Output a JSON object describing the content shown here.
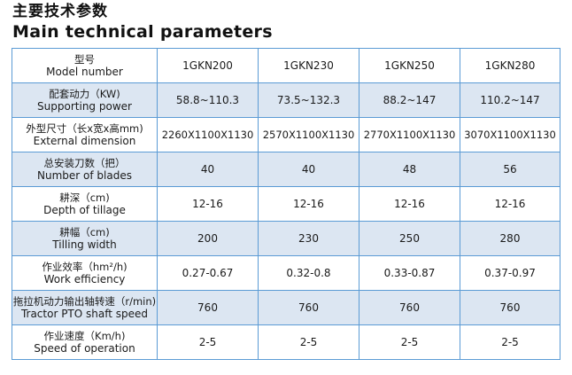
{
  "title": {
    "cn": "主要技术参数",
    "en": "Main technical parameters"
  },
  "header": {
    "label_cn": "型号",
    "label_en": "Model number",
    "models": [
      "1GKN200",
      "1GKN230",
      "1GKN250",
      "1GKN280"
    ]
  },
  "rows": [
    {
      "label_cn": "配套动力（KW)",
      "label_en": "Supporting power",
      "values": [
        "58.8~110.3",
        "73.5~132.3",
        "88.2~147",
        "110.2~147"
      ]
    },
    {
      "label_cn": "外型尺寸（长x宽x高mm)",
      "label_en": "External dimension",
      "values": [
        "2260X1100X1130",
        "2570X1100X1130",
        "2770X1100X1130",
        "3070X1100X1130"
      ]
    },
    {
      "label_cn": "总安装刀数（把）",
      "label_en": "Number of blades",
      "values": [
        "40",
        "40",
        "48",
        "56"
      ]
    },
    {
      "label_cn": "耕深（cm)",
      "label_en": "Depth of  tillage",
      "values": [
        "12-16",
        "12-16",
        "12-16",
        "12-16"
      ]
    },
    {
      "label_cn": "耕幅（cm)",
      "label_en": "Tilling width",
      "values": [
        "200",
        "230",
        "250",
        "280"
      ]
    },
    {
      "label_cn": "作业效率（hm²/h)",
      "label_en": "Work efficiency",
      "values": [
        "0.27-0.67",
        "0.32-0.8",
        "0.33-0.87",
        "0.37-0.97"
      ]
    },
    {
      "label_cn": "拖拉机动力输出轴转速（r/min)",
      "label_en": "Tractor PTO shaft speed",
      "values": [
        "760",
        "760",
        "760",
        "760"
      ]
    },
    {
      "label_cn": "作业速度（Km/h)",
      "label_en": "Speed of operation",
      "values": [
        "2-5",
        "2-5",
        "2-5",
        "2-5"
      ]
    }
  ],
  "colors": {
    "border": "#5b9bd5",
    "shade": "#dce6f2",
    "text": "#1a1a1a"
  }
}
